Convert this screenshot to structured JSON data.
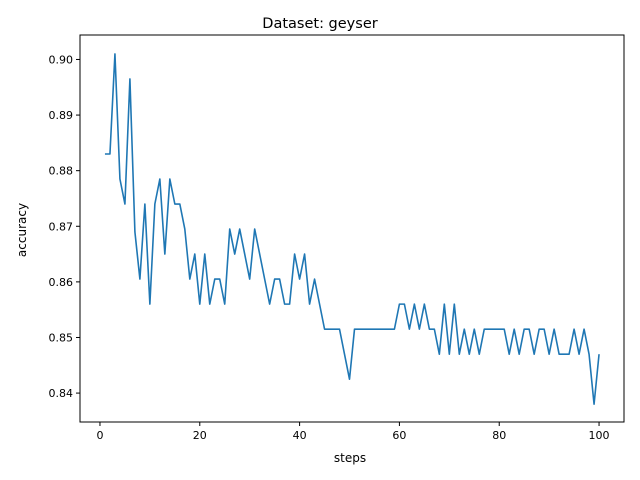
{
  "chart_data": {
    "type": "line",
    "title": "Dataset: geyser",
    "xlabel": "steps",
    "ylabel": "accuracy",
    "xlim": [
      -4.0,
      105.0
    ],
    "ylim": [
      0.8348,
      0.9044
    ],
    "xticks": [
      0,
      20,
      40,
      60,
      80,
      100
    ],
    "xtick_labels": [
      "0",
      "20",
      "40",
      "60",
      "80",
      "100"
    ],
    "yticks": [
      0.84,
      0.85,
      0.86,
      0.87,
      0.88,
      0.89,
      0.9
    ],
    "ytick_labels": [
      "0.84",
      "0.85",
      "0.86",
      "0.87",
      "0.88",
      "0.89",
      "0.90"
    ],
    "grid": false,
    "legend": "none",
    "colors": {
      "line": "#1f77b4",
      "axes": "#000000",
      "background": "#ffffff"
    },
    "series": [
      {
        "x": [
          1,
          2,
          3,
          4,
          5,
          6,
          7,
          8,
          9,
          10,
          11,
          12,
          13,
          14,
          15,
          16,
          17,
          18,
          19,
          20,
          21,
          22,
          23,
          24,
          25,
          26,
          27,
          28,
          29,
          30,
          31,
          32,
          33,
          34,
          35,
          36,
          37,
          38,
          39,
          40,
          41,
          42,
          43,
          44,
          45,
          46,
          47,
          48,
          49,
          50,
          51,
          52,
          53,
          54,
          55,
          56,
          57,
          58,
          59,
          60,
          61,
          62,
          63,
          64,
          65,
          66,
          67,
          68,
          69,
          70,
          71,
          72,
          73,
          74,
          75,
          76,
          77,
          78,
          79,
          80,
          81,
          82,
          83,
          84,
          85,
          86,
          87,
          88,
          89,
          90,
          91,
          92,
          93,
          94,
          95,
          96,
          97,
          98,
          99,
          100
        ],
        "values": [
          0.883,
          0.883,
          0.901,
          0.8785,
          0.874,
          0.8965,
          0.869,
          0.8605,
          0.874,
          0.856,
          0.874,
          0.8785,
          0.865,
          0.8785,
          0.874,
          0.874,
          0.8695,
          0.8605,
          0.865,
          0.856,
          0.865,
          0.856,
          0.8605,
          0.8605,
          0.856,
          0.8695,
          0.865,
          0.8695,
          0.865,
          0.8605,
          0.8695,
          0.865,
          0.8605,
          0.856,
          0.8605,
          0.8605,
          0.856,
          0.856,
          0.865,
          0.8605,
          0.865,
          0.856,
          0.8605,
          0.856,
          0.8515,
          0.8515,
          0.8515,
          0.8515,
          0.847,
          0.8425,
          0.8515,
          0.8515,
          0.8515,
          0.8515,
          0.8515,
          0.8515,
          0.8515,
          0.8515,
          0.8515,
          0.856,
          0.856,
          0.8515,
          0.856,
          0.8515,
          0.856,
          0.8515,
          0.8515,
          0.847,
          0.856,
          0.847,
          0.856,
          0.847,
          0.8515,
          0.847,
          0.8515,
          0.847,
          0.8515,
          0.8515,
          0.8515,
          0.8515,
          0.8515,
          0.847,
          0.8515,
          0.847,
          0.8515,
          0.8515,
          0.847,
          0.8515,
          0.8515,
          0.847,
          0.8515,
          0.847,
          0.847,
          0.847,
          0.8515,
          0.847,
          0.8515,
          0.847,
          0.838,
          0.847
        ]
      }
    ]
  }
}
